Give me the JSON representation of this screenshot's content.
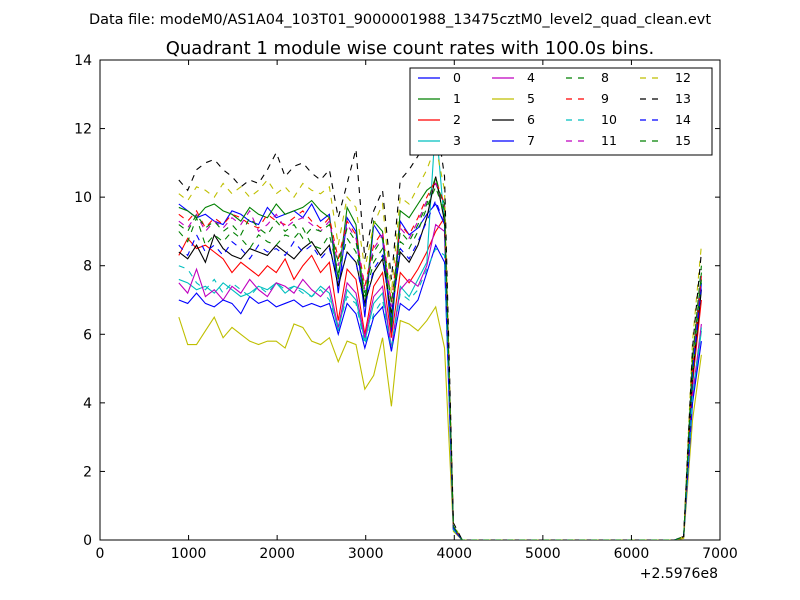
{
  "chart_data": {
    "type": "line",
    "suptitle": "Data file: modeM0/AS1A04_103T01_9000001988_13475cztM0_level2_quad_clean.evt",
    "title": "Quadrant 1 module wise count rates with 100.0s bins.",
    "xlabel": "",
    "ylabel": "",
    "xlim": [
      0,
      7000
    ],
    "ylim": [
      0,
      14
    ],
    "x_offset_label": "+2.5976e8",
    "x_ticks": [
      "0",
      "1000",
      "2000",
      "3000",
      "4000",
      "5000",
      "6000",
      "7000"
    ],
    "y_ticks": [
      "0",
      "2",
      "4",
      "6",
      "8",
      "10",
      "12",
      "14"
    ],
    "grid": false,
    "legend_position": "top-right",
    "x": [
      890,
      990,
      1090,
      1190,
      1290,
      1390,
      1490,
      1590,
      1690,
      1790,
      1890,
      1990,
      2090,
      2190,
      2290,
      2390,
      2490,
      2590,
      2690,
      2790,
      2890,
      2990,
      3090,
      3190,
      3290,
      3390,
      3490,
      3590,
      3690,
      3790,
      3890,
      3990,
      4090,
      4190,
      4290,
      4390,
      4490,
      4590,
      4690,
      4790,
      4890,
      4990,
      5090,
      5190,
      5290,
      5390,
      5490,
      5590,
      5690,
      5790,
      5890,
      5990,
      6090,
      6190,
      6290,
      6390,
      6490,
      6590,
      6690,
      6790
    ],
    "series": [
      {
        "name": "0",
        "color": "#0000ff",
        "dash": false,
        "values": [
          9.8,
          9.6,
          9.4,
          9.5,
          9.3,
          9.2,
          9.6,
          9.5,
          9.3,
          9.2,
          9.7,
          9.4,
          9.5,
          9.6,
          9.4,
          9.8,
          9.3,
          9.5,
          7.2,
          9.4,
          9.0,
          6.5,
          9.2,
          8.8,
          6.0,
          9.3,
          8.9,
          9.1,
          9.5,
          9.8,
          9.2,
          0.35,
          0,
          0,
          0,
          0,
          0,
          0,
          0,
          0,
          0,
          0,
          0,
          0,
          0,
          0,
          0,
          0,
          0,
          0,
          0,
          0,
          0,
          0,
          0,
          0,
          0,
          0.1,
          4.5,
          7.5
        ]
      },
      {
        "name": "1",
        "color": "#008000",
        "dash": false,
        "values": [
          9.7,
          9.6,
          9.4,
          9.7,
          9.8,
          9.6,
          9.5,
          9.3,
          9.7,
          9.5,
          9.4,
          9.8,
          9.5,
          9.6,
          9.7,
          9.9,
          9.6,
          9.4,
          7.6,
          9.7,
          9.2,
          6.8,
          9.3,
          9.0,
          6.2,
          9.6,
          9.4,
          9.8,
          10.2,
          10.4,
          9.8,
          0.4,
          0,
          0,
          0,
          0,
          0,
          0,
          0,
          0,
          0,
          0,
          0,
          0,
          0,
          0,
          0,
          0,
          0,
          0,
          0,
          0,
          0,
          0,
          0,
          0,
          0,
          0.1,
          5.2,
          7.8
        ]
      },
      {
        "name": "2",
        "color": "#ff0000",
        "dash": false,
        "values": [
          8.3,
          8.8,
          8.5,
          8.6,
          8.4,
          8.2,
          7.8,
          8.1,
          7.9,
          7.7,
          8.0,
          7.8,
          8.2,
          7.6,
          8.0,
          8.3,
          7.8,
          8.1,
          6.4,
          7.9,
          7.6,
          6.0,
          7.4,
          7.8,
          5.9,
          7.8,
          7.5,
          7.9,
          8.4,
          9.0,
          9.4,
          0.35,
          0,
          0,
          0,
          0,
          0,
          0,
          0,
          0,
          0,
          0,
          0,
          0,
          0,
          0,
          0,
          0,
          0,
          0,
          0,
          0,
          0,
          0,
          0,
          0,
          0,
          0.1,
          4.6,
          7.0
        ]
      },
      {
        "name": "3",
        "color": "#00bfbf",
        "dash": false,
        "values": [
          7.6,
          7.5,
          7.3,
          7.4,
          7.2,
          7.5,
          7.3,
          7.1,
          7.2,
          7.4,
          7.3,
          7.5,
          7.2,
          7.4,
          7.3,
          7.1,
          7.4,
          7.2,
          6.1,
          7.3,
          7.0,
          5.8,
          6.9,
          7.2,
          5.6,
          7.4,
          7.1,
          7.6,
          8.1,
          12.2,
          9.2,
          0.3,
          0,
          0,
          0,
          0,
          0,
          0,
          0,
          0,
          0,
          0,
          0,
          0,
          0,
          0,
          0,
          0,
          0,
          0,
          0,
          0,
          0,
          0,
          0,
          0,
          0,
          0.1,
          4.1,
          6.1
        ]
      },
      {
        "name": "4",
        "color": "#bf00bf",
        "dash": false,
        "values": [
          7.5,
          7.2,
          7.9,
          7.1,
          7.3,
          7.0,
          7.4,
          7.2,
          7.6,
          7.3,
          7.1,
          7.5,
          7.4,
          7.2,
          7.6,
          7.3,
          7.1,
          7.4,
          6.2,
          7.5,
          7.2,
          5.9,
          7.1,
          7.4,
          5.6,
          7.3,
          7.6,
          7.4,
          8.0,
          9.2,
          9.0,
          0.3,
          0,
          0,
          0,
          0,
          0,
          0,
          0,
          0,
          0,
          0,
          0,
          0,
          0,
          0,
          0,
          0,
          0,
          0,
          0,
          0,
          0,
          0,
          0,
          0,
          0,
          0.1,
          4.2,
          6.3
        ]
      },
      {
        "name": "5",
        "color": "#bfbf00",
        "dash": false,
        "values": [
          6.5,
          5.7,
          5.7,
          6.1,
          6.5,
          5.9,
          6.2,
          6.0,
          5.8,
          5.7,
          5.8,
          5.8,
          5.6,
          6.3,
          6.2,
          5.8,
          5.7,
          5.9,
          5.2,
          5.8,
          5.7,
          4.4,
          4.8,
          5.9,
          3.9,
          6.4,
          6.3,
          6.1,
          6.4,
          6.8,
          5.6,
          0.25,
          0,
          0,
          0,
          0,
          0,
          0,
          0,
          0,
          0,
          0,
          0,
          0,
          0,
          0,
          0,
          0,
          0,
          0,
          0,
          0,
          0,
          0,
          0,
          0,
          0,
          0.05,
          3.5,
          5.4
        ]
      },
      {
        "name": "6",
        "color": "#000000",
        "dash": false,
        "values": [
          8.4,
          8.2,
          8.6,
          8.1,
          8.9,
          8.5,
          8.3,
          8.2,
          8.5,
          8.4,
          8.3,
          8.6,
          8.4,
          8.2,
          8.5,
          8.7,
          8.3,
          8.6,
          7.4,
          8.4,
          8.1,
          6.9,
          7.8,
          8.2,
          6.6,
          8.4,
          8.1,
          8.6,
          9.4,
          10.6,
          9.3,
          0.35,
          0,
          0,
          0,
          0,
          0,
          0,
          0,
          0,
          0,
          0,
          0,
          0,
          0,
          0,
          0,
          0,
          0,
          0,
          0,
          0,
          0,
          0,
          0,
          0,
          0,
          0.1,
          4.8,
          7.3
        ]
      },
      {
        "name": "7",
        "color": "#0000ff",
        "dash": false,
        "values": [
          7.0,
          6.9,
          7.2,
          6.9,
          6.8,
          7.0,
          6.9,
          6.6,
          7.1,
          6.9,
          7.0,
          6.8,
          6.9,
          7.0,
          6.8,
          6.9,
          6.8,
          6.9,
          6.0,
          6.9,
          6.6,
          5.6,
          6.5,
          6.8,
          5.5,
          6.9,
          6.7,
          7.0,
          7.8,
          8.6,
          8.1,
          0.3,
          0,
          0,
          0,
          0,
          0,
          0,
          0,
          0,
          0,
          0,
          0,
          0,
          0,
          0,
          0,
          0,
          0,
          0,
          0,
          0,
          0,
          0,
          0,
          0,
          0,
          0.1,
          4.0,
          5.8
        ]
      },
      {
        "name": "8",
        "color": "#008000",
        "dash": true,
        "values": [
          9.0,
          8.7,
          9.4,
          8.6,
          8.9,
          8.7,
          9.0,
          8.8,
          8.5,
          8.9,
          8.7,
          8.6,
          8.9,
          8.8,
          9.1,
          8.6,
          8.5,
          8.9,
          7.8,
          8.8,
          8.4,
          7.1,
          8.1,
          8.5,
          6.4,
          8.7,
          8.5,
          9.0,
          9.7,
          10.3,
          9.5,
          0.4,
          0,
          0,
          0,
          0,
          0,
          0,
          0,
          0,
          0,
          0,
          0,
          0,
          0,
          0,
          0,
          0,
          0,
          0,
          0,
          0,
          0,
          0,
          0,
          0,
          0,
          0.1,
          4.7,
          7.6
        ]
      },
      {
        "name": "9",
        "color": "#ff0000",
        "dash": true,
        "values": [
          9.5,
          9.3,
          9.6,
          9.1,
          9.4,
          9.2,
          9.5,
          9.4,
          9.2,
          9.1,
          9.5,
          9.3,
          9.2,
          9.4,
          9.6,
          9.3,
          9.1,
          9.4,
          8.2,
          9.3,
          8.9,
          7.4,
          8.6,
          9.0,
          6.9,
          9.2,
          8.9,
          9.4,
          10.0,
          10.5,
          9.8,
          0.4,
          0,
          0,
          0,
          0,
          0,
          0,
          0,
          0,
          0,
          0,
          0,
          0,
          0,
          0,
          0,
          0,
          0,
          0,
          0,
          0,
          0,
          0,
          0,
          0,
          0,
          0.1,
          5.0,
          7.7
        ]
      },
      {
        "name": "10",
        "color": "#00bfbf",
        "dash": true,
        "values": [
          8.0,
          7.9,
          7.5,
          7.3,
          7.6,
          7.2,
          7.5,
          7.3,
          7.1,
          7.4,
          7.2,
          7.5,
          7.3,
          7.4,
          7.2,
          7.1,
          7.3,
          7.0,
          6.2,
          7.1,
          6.9,
          5.7,
          6.6,
          7.0,
          5.6,
          7.2,
          7.0,
          7.3,
          7.9,
          8.5,
          8.3,
          0.3,
          0,
          0,
          0,
          0,
          0,
          0,
          0,
          0,
          0,
          0,
          0,
          0,
          0,
          0,
          0,
          0,
          0,
          0,
          0,
          0,
          0,
          0,
          0,
          0,
          0,
          0.1,
          4.2,
          6.2
        ]
      },
      {
        "name": "11",
        "color": "#bf00bf",
        "dash": true,
        "values": [
          9.3,
          9.1,
          9.5,
          9.0,
          9.3,
          9.1,
          9.4,
          9.2,
          9.6,
          9.0,
          9.2,
          9.5,
          9.1,
          9.3,
          9.4,
          9.2,
          9.0,
          9.3,
          8.0,
          9.2,
          8.8,
          7.3,
          8.5,
          8.9,
          6.8,
          9.1,
          8.8,
          9.3,
          9.9,
          10.4,
          9.7,
          0.4,
          0,
          0,
          0,
          0,
          0,
          0,
          0,
          0,
          0,
          0,
          0,
          0,
          0,
          0,
          0,
          0,
          0,
          0,
          0,
          0,
          0,
          0,
          0,
          0,
          0,
          0.1,
          5.1,
          7.9
        ]
      },
      {
        "name": "12",
        "color": "#bfbf00",
        "dash": true,
        "values": [
          10.1,
          9.9,
          10.3,
          10.2,
          10.0,
          10.4,
          10.1,
          10.3,
          10.0,
          10.2,
          10.5,
          10.1,
          10.3,
          10.0,
          10.4,
          10.2,
          10.1,
          10.3,
          8.6,
          10.0,
          9.7,
          7.9,
          9.2,
          9.8,
          7.2,
          10.0,
          9.8,
          10.3,
          10.8,
          11.5,
          10.2,
          0.45,
          0,
          0,
          0,
          0,
          0,
          0,
          0,
          0,
          0,
          0,
          0,
          0,
          0,
          0,
          0,
          0,
          0,
          0,
          0,
          0,
          0,
          0,
          0,
          0,
          0,
          0.1,
          5.8,
          8.6
        ]
      },
      {
        "name": "13",
        "color": "#000000",
        "dash": true,
        "values": [
          10.5,
          10.2,
          10.8,
          11.0,
          11.1,
          10.8,
          10.6,
          10.3,
          10.5,
          10.4,
          10.8,
          11.3,
          10.6,
          10.9,
          11.0,
          10.7,
          10.5,
          10.8,
          9.4,
          10.4,
          11.4,
          8.2,
          9.6,
          10.2,
          7.6,
          10.5,
          10.8,
          11.2,
          11.6,
          12.4,
          10.6,
          0.5,
          0,
          0,
          0,
          0,
          0,
          0,
          0,
          0,
          0,
          0,
          0,
          0,
          0,
          0,
          0,
          0,
          0,
          0,
          0,
          0,
          0,
          0,
          0,
          0,
          0,
          0.1,
          5.6,
          8.4
        ]
      },
      {
        "name": "14",
        "color": "#0000ff",
        "dash": true,
        "values": [
          8.6,
          8.3,
          8.9,
          8.4,
          8.6,
          8.3,
          8.7,
          8.5,
          8.2,
          8.6,
          8.4,
          8.5,
          8.3,
          8.7,
          8.4,
          8.6,
          8.2,
          8.5,
          7.5,
          8.4,
          8.1,
          6.8,
          7.9,
          8.3,
          6.5,
          8.5,
          8.2,
          8.7,
          9.3,
          9.9,
          9.2,
          0.35,
          0,
          0,
          0,
          0,
          0,
          0,
          0,
          0,
          0,
          0,
          0,
          0,
          0,
          0,
          0,
          0,
          0,
          0,
          0,
          0,
          0,
          0,
          0,
          0,
          0,
          0.1,
          4.9,
          7.4
        ]
      },
      {
        "name": "15",
        "color": "#008000",
        "dash": true,
        "values": [
          9.2,
          9.0,
          9.5,
          9.1,
          9.3,
          9.0,
          9.2,
          8.9,
          9.4,
          9.1,
          8.9,
          9.3,
          9.0,
          9.2,
          8.8,
          9.1,
          9.0,
          9.2,
          8.1,
          9.1,
          8.7,
          7.2,
          8.4,
          8.8,
          6.9,
          9.0,
          8.7,
          9.2,
          9.8,
          10.6,
          9.6,
          0.4,
          0,
          0,
          0,
          0,
          0,
          0,
          0,
          0,
          0,
          0,
          0,
          0,
          0,
          0,
          0,
          0,
          0,
          0,
          0,
          0,
          0,
          0,
          0,
          0,
          0,
          0.1,
          5.3,
          8.0
        ]
      }
    ]
  }
}
